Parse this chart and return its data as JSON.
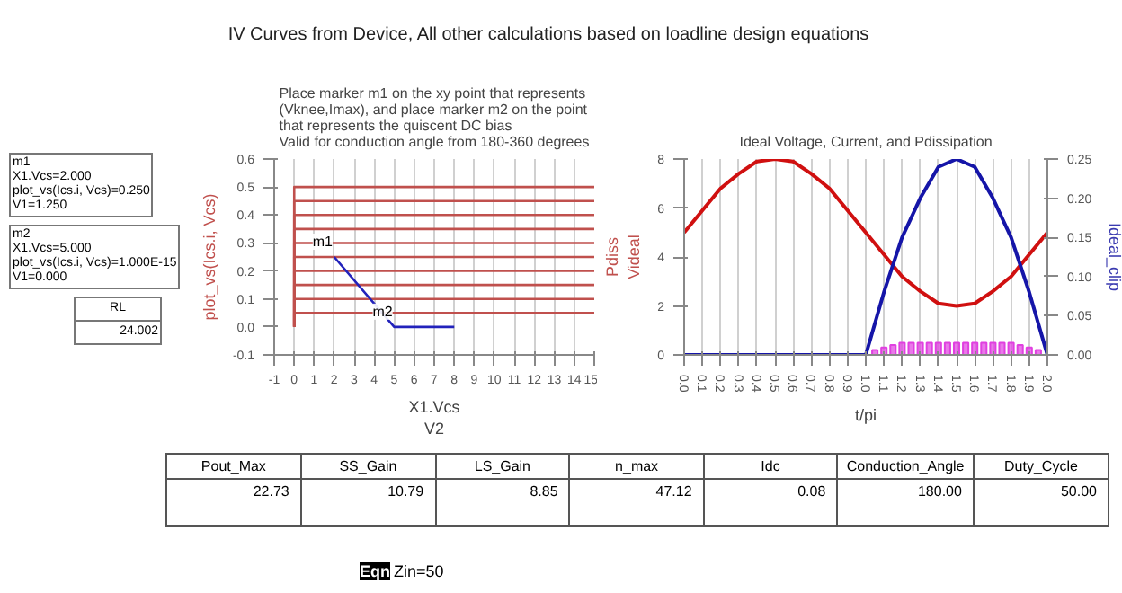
{
  "chart_data": [
    {
      "type": "other",
      "title": "IV Curves from Device, All other calculations based on loadline design equations",
      "annotations": [
        "m1\nX1.Vcs=2.000\nplot_vs(Ics.i, Vcs)=0.250\nV1=1.250",
        "m2\nX1.Vcs=5.000\nplot_vs(Ics.i, Vcs)=1.000E-15\nV1=0.000",
        "RL\n24.002",
        "Eqn",
        "Zin=50"
      ]
    },
    {
      "type": "line",
      "title": "Place marker m1 on the xy point that represents\n(Vknee,Imax), and place marker m2 on the point\nthat represents the quiscent DC bias\nValid for conduction angle from 180-360 degrees",
      "xlabel": "X1.Vcs\nV2",
      "ylabel": "plot_vs(Ics.i, Vcs)",
      "xlim": [
        -1,
        15
      ],
      "xticks": [
        -1,
        0,
        1,
        2,
        3,
        4,
        5,
        6,
        7,
        8,
        9,
        10,
        11,
        12,
        13,
        14,
        15
      ],
      "ylim": [
        -0.1,
        0.6
      ],
      "yticks": [
        -0.1,
        {
          "value": 0,
          "label": "0.0"
        },
        0.1,
        0.2,
        0.3,
        0.4,
        0.5,
        0.6
      ],
      "grid": "x",
      "series": [
        {
          "color": "#c0504d",
          "x": [
            0,
            0,
            15
          ],
          "values": [
            0,
            0.05,
            0.05
          ]
        },
        {
          "color": "#c0504d",
          "x": [
            0,
            0,
            15
          ],
          "values": [
            0,
            0.1,
            0.1
          ]
        },
        {
          "color": "#c0504d",
          "x": [
            0,
            0,
            15
          ],
          "values": [
            0,
            0.15,
            0.15
          ]
        },
        {
          "color": "#c0504d",
          "x": [
            0,
            0,
            15
          ],
          "values": [
            0,
            0.2,
            0.2
          ]
        },
        {
          "color": "#c0504d",
          "x": [
            0,
            0,
            15
          ],
          "values": [
            0,
            0.25,
            0.25
          ]
        },
        {
          "color": "#c0504d",
          "x": [
            0,
            0,
            15
          ],
          "values": [
            0,
            0.3,
            0.3
          ]
        },
        {
          "color": "#c0504d",
          "x": [
            0,
            0,
            15
          ],
          "values": [
            0,
            0.35,
            0.35
          ]
        },
        {
          "color": "#c0504d",
          "x": [
            0,
            0,
            15
          ],
          "values": [
            0,
            0.4,
            0.4
          ]
        },
        {
          "color": "#c0504d",
          "x": [
            0,
            0,
            15
          ],
          "values": [
            0,
            0.45,
            0.45
          ]
        },
        {
          "color": "#c0504d",
          "x": [
            0,
            0,
            15
          ],
          "values": [
            0,
            0.5,
            0.5
          ]
        },
        {
          "color": "#2222bb",
          "x": [
            2,
            5,
            8
          ],
          "values": [
            0.25,
            0,
            0
          ]
        }
      ],
      "annotations": [
        {
          "text": "m1",
          "x": 2,
          "y": 0.25
        },
        {
          "text": "m2",
          "x": 5,
          "y": 0
        }
      ]
    },
    {
      "type": "line",
      "title": "Ideal Voltage, Current, and Pdissipation",
      "xlabel": "t/pi",
      "ylabel": "Pdiss\nVideal",
      "y2label": "Ideal_clip",
      "xlim": [
        0,
        2
      ],
      "xticks": [
        {
          "value": 0,
          "label": "0.0"
        },
        {
          "value": 0.1,
          "label": "0.1"
        },
        {
          "value": 0.2,
          "label": "0.2"
        },
        {
          "value": 0.3,
          "label": "0.3"
        },
        {
          "value": 0.4,
          "label": "0.4"
        },
        {
          "value": 0.5,
          "label": "0.5"
        },
        {
          "value": 0.6,
          "label": "0.6"
        },
        {
          "value": 0.7,
          "label": "0.7"
        },
        {
          "value": 0.8,
          "label": "0.8"
        },
        {
          "value": 0.9,
          "label": "0.9"
        },
        {
          "value": 1,
          "label": "1.0"
        },
        {
          "value": 1.1,
          "label": "1.1"
        },
        {
          "value": 1.2,
          "label": "1.2"
        },
        {
          "value": 1.3,
          "label": "1.3"
        },
        {
          "value": 1.4,
          "label": "1.4"
        },
        {
          "value": 1.5,
          "label": "1.5"
        },
        {
          "value": 1.6,
          "label": "1.6"
        },
        {
          "value": 1.7,
          "label": "1.7"
        },
        {
          "value": 1.8,
          "label": "1.8"
        },
        {
          "value": 1.9,
          "label": "1.9"
        },
        {
          "value": 2,
          "label": "2.0"
        }
      ],
      "ylim": [
        0,
        8
      ],
      "yticks": [
        0,
        2,
        4,
        6,
        8
      ],
      "y2lim": [
        0,
        0.25
      ],
      "y2ticks": [
        {
          "value": 0,
          "label": "0.00"
        },
        {
          "value": 0.05,
          "label": "0.05"
        },
        {
          "value": 0.1,
          "label": "0.10"
        },
        {
          "value": 0.15,
          "label": "0.15"
        },
        {
          "value": 0.2,
          "label": "0.20"
        },
        {
          "value": 0.25,
          "label": "0.25"
        }
      ],
      "grid": "x",
      "series": [
        {
          "type": "bar",
          "color": "#e040e0",
          "x": [
            1.0,
            1.05,
            1.1,
            1.15,
            1.2,
            1.25,
            1.3,
            1.35,
            1.4,
            1.45,
            1.5,
            1.55,
            1.6,
            1.65,
            1.7,
            1.75,
            1.8,
            1.85,
            1.9,
            1.95,
            2.0
          ],
          "values": [
            0,
            0.2,
            0.3,
            0.4,
            0.5,
            0.5,
            0.5,
            0.5,
            0.5,
            0.5,
            0.5,
            0.5,
            0.5,
            0.5,
            0.5,
            0.5,
            0.5,
            0.4,
            0.3,
            0.2,
            0
          ]
        },
        {
          "type": "line",
          "color": "#d01010",
          "x": [
            0,
            0.1,
            0.2,
            0.3,
            0.4,
            0.5,
            0.6,
            0.7,
            0.8,
            0.9,
            1.0,
            1.1,
            1.2,
            1.3,
            1.4,
            1.5,
            1.6,
            1.7,
            1.8,
            1.9,
            2.0
          ],
          "values": [
            5,
            5.9,
            6.8,
            7.4,
            7.9,
            8,
            7.9,
            7.4,
            6.8,
            5.9,
            5,
            4.1,
            3.2,
            2.6,
            2.1,
            2,
            2.1,
            2.6,
            3.2,
            4.1,
            5
          ]
        },
        {
          "type": "line",
          "color": "#1515a8",
          "axis": "y2",
          "x": [
            0,
            0.1,
            0.2,
            0.3,
            0.4,
            0.5,
            0.6,
            0.7,
            0.8,
            0.9,
            1.0,
            1.1,
            1.2,
            1.3,
            1.4,
            1.5,
            1.6,
            1.7,
            1.8,
            1.9,
            2.0
          ],
          "values": [
            0,
            0,
            0,
            0,
            0,
            0,
            0,
            0,
            0,
            0,
            0,
            0.08,
            0.15,
            0.2,
            0.24,
            0.25,
            0.24,
            0.2,
            0.15,
            0.08,
            0
          ]
        }
      ]
    },
    {
      "type": "other",
      "categories": [
        "Pout_Max",
        "SS_Gain",
        "LS_Gain",
        "n_max",
        "Idc",
        "Conduction_Angle",
        "Duty_Cycle"
      ],
      "value_labels": [
        "22.73",
        "10.79",
        "8.85",
        "47.12",
        "0.08",
        "180.00",
        "50.00"
      ]
    }
  ]
}
